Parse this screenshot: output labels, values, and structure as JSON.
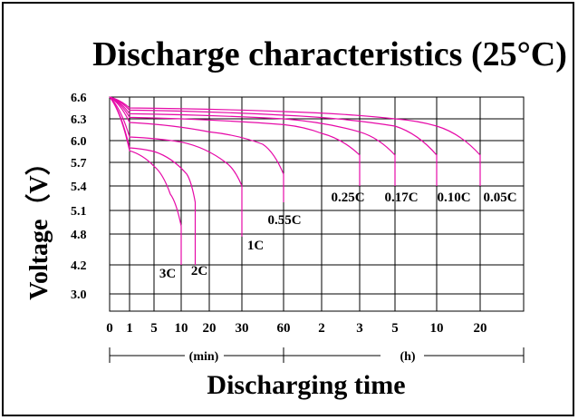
{
  "chart_data": {
    "type": "line",
    "title": "Discharge characteristics (25°C)",
    "xlabel": "Discharging time",
    "ylabel": "Voltage（V）",
    "x_units": [
      "(min)",
      "(h)"
    ],
    "x_ticks": [
      "0",
      "1",
      "5",
      "10",
      "20",
      "30",
      "60",
      "2",
      "3",
      "5",
      "10",
      "20"
    ],
    "y_ticks": [
      "6.6",
      "6.3",
      "6.0",
      "5.7",
      "5.4",
      "5.1",
      "4.8",
      "4.2",
      "3.0"
    ],
    "grid": true,
    "line_color": "#e60aa8",
    "series": [
      {
        "name": "3C",
        "points": [
          [
            "0 min",
            6.6
          ],
          [
            "1 min",
            5.86
          ],
          [
            "5 min",
            5.65
          ],
          [
            "8 min",
            5.3
          ],
          [
            "10 min",
            4.9
          ],
          [
            "10 min",
            4.2
          ]
        ]
      },
      {
        "name": "2C",
        "points": [
          [
            "0 min",
            6.6
          ],
          [
            "1 min",
            5.9
          ],
          [
            "5 min",
            5.85
          ],
          [
            "12 min",
            5.55
          ],
          [
            "15 min",
            5.2
          ],
          [
            "15 min",
            4.2
          ]
        ]
      },
      {
        "name": "1C",
        "points": [
          [
            "0 min",
            6.6
          ],
          [
            "1 min",
            6.05
          ],
          [
            "10 min",
            5.98
          ],
          [
            "25 min",
            5.7
          ],
          [
            "30 min",
            5.4
          ],
          [
            "30 min",
            4.75
          ]
        ]
      },
      {
        "name": "0.55C",
        "points": [
          [
            "0 min",
            6.6
          ],
          [
            "1 min",
            6.25
          ],
          [
            "20 min",
            6.12
          ],
          [
            "45 min",
            5.95
          ],
          [
            "60 min",
            5.55
          ],
          [
            "60 min",
            5.2
          ]
        ]
      },
      {
        "name": "0.25C",
        "points": [
          [
            "0 min",
            6.6
          ],
          [
            "1 min",
            6.32
          ],
          [
            "60 min",
            6.22
          ],
          [
            "2 h",
            6.1
          ],
          [
            "3 h",
            5.8
          ],
          [
            "3 h",
            5.4
          ]
        ]
      },
      {
        "name": "0.17C",
        "points": [
          [
            "0 min",
            6.6
          ],
          [
            "1 min",
            6.37
          ],
          [
            "60 min",
            6.3
          ],
          [
            "3 h",
            6.12
          ],
          [
            "5 h",
            5.8
          ],
          [
            "5 h",
            5.4
          ]
        ]
      },
      {
        "name": "0.10C",
        "points": [
          [
            "0 min",
            6.6
          ],
          [
            "1 min",
            6.42
          ],
          [
            "60 min",
            6.35
          ],
          [
            "5 h",
            6.2
          ],
          [
            "10 h",
            5.8
          ],
          [
            "10 h",
            5.4
          ]
        ]
      },
      {
        "name": "0.05C",
        "points": [
          [
            "0 min",
            6.6
          ],
          [
            "1 min",
            6.45
          ],
          [
            "60 min",
            6.4
          ],
          [
            "5 h",
            6.3
          ],
          [
            "10 h",
            6.2
          ],
          [
            "20 h",
            5.8
          ],
          [
            "20 h",
            5.4
          ]
        ]
      }
    ]
  }
}
